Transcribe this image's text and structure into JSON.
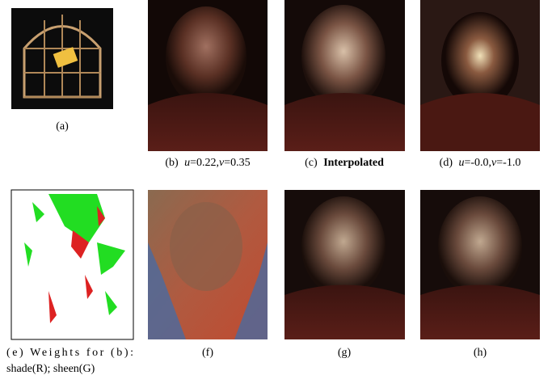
{
  "figure": {
    "panels": [
      {
        "caption": [
          "(a)"
        ]
      },
      {
        "caption": [
          "(b)",
          "u",
          "=0.22,",
          "v",
          "=0.35"
        ]
      },
      {
        "caption": [
          "(c)",
          "Interpolated"
        ]
      },
      {
        "caption": [
          "(d)",
          "u",
          "=-0.0,",
          "v",
          "=-1.0"
        ]
      },
      {
        "caption": [
          "(e) Weights for (b):",
          "shade(R); sheen(G)"
        ]
      },
      {
        "caption": [
          "(f)"
        ]
      },
      {
        "caption": [
          "(g)"
        ]
      },
      {
        "caption": [
          "(h)"
        ]
      }
    ]
  }
}
